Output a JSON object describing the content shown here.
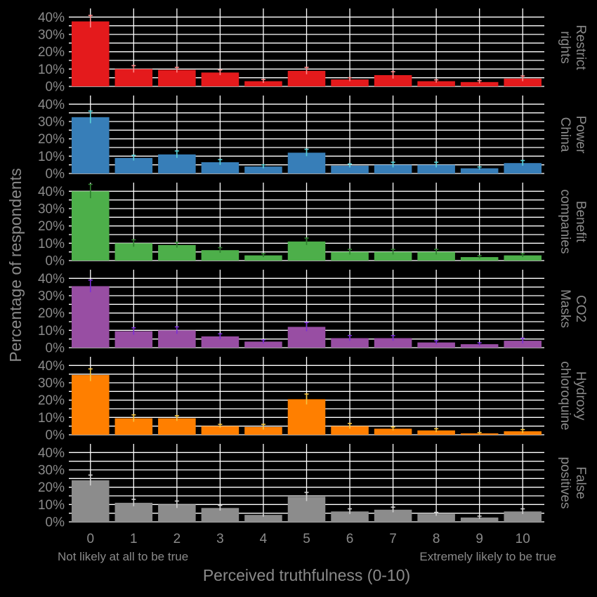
{
  "chart_data": {
    "type": "bar",
    "layout": "faceted-vertical",
    "xlabel": "Perceived truthfulness (0-10)",
    "ylabel": "Percentage of respondents",
    "x_anchor_left": "Not likely at all to be true",
    "x_anchor_right": "Extremely likely to be true",
    "categories": [
      "0",
      "1",
      "2",
      "3",
      "4",
      "5",
      "6",
      "7",
      "8",
      "9",
      "10"
    ],
    "ylim": [
      0,
      45
    ],
    "yticks": [
      0,
      10,
      20,
      30,
      40
    ],
    "ytick_labels": [
      "0%",
      "10%",
      "20%",
      "30%",
      "40%"
    ],
    "grid": true,
    "series": [
      {
        "name": "Restrict rights",
        "strip": [
          "Restrict",
          "rights"
        ],
        "color": "#e41a1c",
        "errcolor": "#ff8a8a",
        "values": [
          37.5,
          10,
          9.5,
          8,
          3,
          9,
          4,
          6.5,
          3,
          2.5,
          4.5
        ],
        "err": [
          3.5,
          2,
          1.5,
          1.5,
          1,
          2,
          1,
          2,
          0.8,
          0.8,
          1.5
        ]
      },
      {
        "name": "Power China",
        "strip": [
          "Power",
          "China"
        ],
        "color": "#377eb8",
        "errcolor": "#59d1d8",
        "values": [
          32.5,
          9,
          11,
          6.5,
          4,
          12,
          4.5,
          5,
          5,
          3,
          6
        ],
        "err": [
          3.5,
          1.5,
          2,
          1.5,
          1,
          2,
          1,
          1.5,
          1.5,
          0.8,
          1.5
        ]
      },
      {
        "name": "Benefit companies",
        "strip": [
          "Benefit",
          "companies"
        ],
        "color": "#4daf4a",
        "errcolor": "#2e7d2e",
        "values": [
          40,
          10,
          9,
          6,
          3,
          11,
          5,
          5,
          5,
          2,
          3
        ],
        "err": [
          4,
          2,
          1.5,
          1.5,
          1,
          2,
          1.5,
          1.5,
          1.5,
          0.8,
          1
        ]
      },
      {
        "name": "CO2 Masks",
        "strip": [
          "CO2",
          "Masks"
        ],
        "color": "#984ea3",
        "errcolor": "#7b2fd6",
        "values": [
          35.5,
          9.5,
          10,
          6.5,
          3.5,
          12,
          5.5,
          5.5,
          3,
          2,
          4
        ],
        "err": [
          3.5,
          2,
          2,
          1.5,
          1,
          2.5,
          1.5,
          1.5,
          1,
          0.8,
          1.5
        ]
      },
      {
        "name": "Hydroxy chloroquine",
        "strip": [
          "Hydroxy",
          "chloroquine"
        ],
        "color": "#ff7f00",
        "errcolor": "#f5c542",
        "values": [
          34.5,
          9.5,
          9.5,
          5,
          4.5,
          20.5,
          5,
          3.5,
          2.5,
          0.8,
          2
        ],
        "err": [
          3.5,
          2,
          1.5,
          1,
          1.5,
          3,
          1.5,
          1,
          1,
          0.5,
          1
        ]
      },
      {
        "name": "False positives",
        "strip": [
          "False",
          "positives"
        ],
        "color": "#8c8c8c",
        "errcolor": "#d0d0d0",
        "values": [
          24,
          11,
          10,
          8,
          4,
          14.5,
          6,
          7,
          4.5,
          2.5,
          6
        ],
        "err": [
          3,
          2,
          2,
          1.5,
          1,
          2.5,
          1.5,
          1.5,
          1,
          0.8,
          1.5
        ]
      }
    ]
  }
}
